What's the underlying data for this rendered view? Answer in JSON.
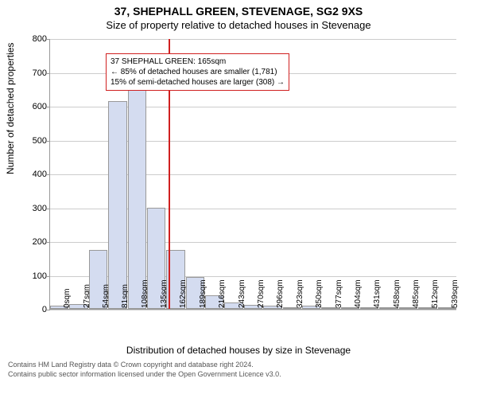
{
  "title": "37, SHEPHALL GREEN, STEVENAGE, SG2 9XS",
  "subtitle": "Size of property relative to detached houses in Stevenage",
  "ylabel": "Number of detached properties",
  "xlabel": "Distribution of detached houses by size in Stevenage",
  "ylim": [
    0,
    800
  ],
  "ytick_step": 100,
  "categories": [
    "0sqm",
    "27sqm",
    "54sqm",
    "81sqm",
    "108sqm",
    "135sqm",
    "162sqm",
    "189sqm",
    "216sqm",
    "243sqm",
    "270sqm",
    "296sqm",
    "323sqm",
    "350sqm",
    "377sqm",
    "404sqm",
    "431sqm",
    "458sqm",
    "485sqm",
    "512sqm",
    "539sqm"
  ],
  "values": [
    10,
    15,
    175,
    615,
    650,
    300,
    175,
    95,
    40,
    20,
    12,
    10,
    3,
    10,
    5,
    3,
    0,
    2,
    0,
    0,
    0
  ],
  "bar_color": "#d4dcf0",
  "bar_border": "#999999",
  "grid_color": "#cccccc",
  "axis_color": "#999999",
  "background_color": "#ffffff",
  "reference_line": {
    "x_index": 6.1,
    "color": "#d02020"
  },
  "annotation": {
    "line1": "37 SHEPHALL GREEN: 165sqm",
    "line2": "← 85% of detached houses are smaller (1,781)",
    "line3": "15% of semi-detached houses are larger (308) →",
    "border_color": "#d02020",
    "fontsize": 10
  },
  "footer_line1": "Contains HM Land Registry data © Crown copyright and database right 2024.",
  "footer_line2": "Contains public sector information licensed under the Open Government Licence v3.0."
}
